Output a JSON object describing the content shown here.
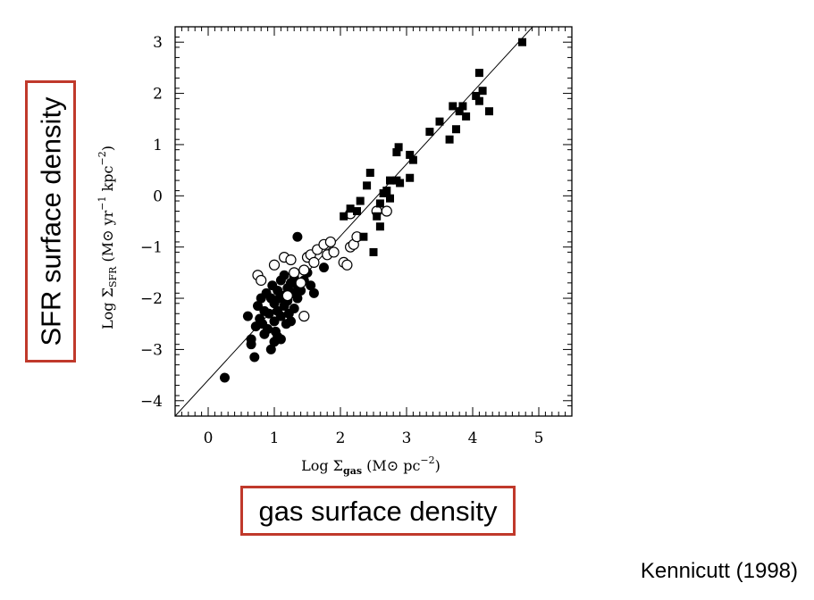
{
  "annotations": {
    "y_box_label": "SFR surface density",
    "x_box_label": "gas surface density",
    "citation": "Kennicutt (1998)"
  },
  "colors": {
    "box_border": "#c0392b",
    "points": "#000000",
    "axes": "#000000"
  },
  "chart_data": {
    "type": "scatter",
    "title": "",
    "xlabel": "Log Σgas  (M⊙ pc⁻²)",
    "ylabel": "Log ΣSFR  (M⊙ yr⁻¹ kpc⁻²)",
    "xlim": [
      -0.5,
      5.5
    ],
    "ylim": [
      -4.3,
      3.3
    ],
    "xticks": [
      0,
      1,
      2,
      3,
      4,
      5
    ],
    "yticks": [
      -4,
      -3,
      -2,
      -1,
      0,
      1,
      2,
      3
    ],
    "xtick_labels": [
      "0",
      "1",
      "2",
      "3",
      "4",
      "5"
    ],
    "ytick_labels": [
      "−4",
      "−3",
      "−2",
      "−1",
      "0",
      "1",
      "2",
      "3"
    ],
    "grid": false,
    "fit_line": {
      "points": [
        [
          -0.5,
          -4.3
        ],
        [
          5.05,
          3.5
        ]
      ]
    },
    "series": [
      {
        "marker": "filled-circle",
        "points": [
          [
            0.25,
            -3.55
          ],
          [
            0.6,
            -2.35
          ],
          [
            0.65,
            -2.8
          ],
          [
            0.65,
            -2.9
          ],
          [
            0.7,
            -3.15
          ],
          [
            0.72,
            -2.55
          ],
          [
            0.75,
            -2.15
          ],
          [
            0.78,
            -2.4
          ],
          [
            0.8,
            -2.0
          ],
          [
            0.82,
            -2.5
          ],
          [
            0.85,
            -2.25
          ],
          [
            0.88,
            -1.9
          ],
          [
            0.9,
            -2.6
          ],
          [
            0.92,
            -2.3
          ],
          [
            0.95,
            -2.0
          ],
          [
            0.97,
            -1.75
          ],
          [
            1.0,
            -2.45
          ],
          [
            1.0,
            -2.1
          ],
          [
            1.02,
            -2.65
          ],
          [
            1.05,
            -1.85
          ],
          [
            1.05,
            -2.25
          ],
          [
            1.08,
            -2.0
          ],
          [
            1.1,
            -1.65
          ],
          [
            1.1,
            -2.35
          ],
          [
            1.12,
            -1.95
          ],
          [
            1.15,
            -2.15
          ],
          [
            1.15,
            -1.55
          ],
          [
            1.18,
            -2.5
          ],
          [
            1.2,
            -1.8
          ],
          [
            1.2,
            -2.05
          ],
          [
            1.22,
            -2.3
          ],
          [
            1.25,
            -1.7
          ],
          [
            1.25,
            -2.45
          ],
          [
            1.28,
            -1.9
          ],
          [
            1.3,
            -2.2
          ],
          [
            1.3,
            -1.6
          ],
          [
            1.35,
            -2.0
          ],
          [
            1.35,
            -1.75
          ],
          [
            1.4,
            -1.85
          ],
          [
            1.45,
            -1.65
          ],
          [
            1.5,
            -1.5
          ],
          [
            1.55,
            -1.75
          ],
          [
            1.6,
            -1.9
          ],
          [
            1.75,
            -1.4
          ],
          [
            1.35,
            -0.8
          ],
          [
            1.0,
            -2.85
          ],
          [
            1.05,
            -2.75
          ],
          [
            0.95,
            -3.0
          ],
          [
            1.1,
            -2.8
          ],
          [
            0.85,
            -2.7
          ]
        ]
      },
      {
        "marker": "open-circle",
        "points": [
          [
            0.75,
            -1.55
          ],
          [
            0.8,
            -1.65
          ],
          [
            1.0,
            -1.35
          ],
          [
            1.15,
            -1.2
          ],
          [
            1.25,
            -1.25
          ],
          [
            1.3,
            -1.5
          ],
          [
            1.45,
            -1.45
          ],
          [
            1.5,
            -1.2
          ],
          [
            1.55,
            -1.15
          ],
          [
            1.6,
            -1.3
          ],
          [
            1.65,
            -1.05
          ],
          [
            1.75,
            -0.95
          ],
          [
            1.8,
            -1.15
          ],
          [
            1.85,
            -0.9
          ],
          [
            1.9,
            -1.1
          ],
          [
            2.05,
            -1.3
          ],
          [
            2.1,
            -1.35
          ],
          [
            2.15,
            -1.0
          ],
          [
            2.2,
            -0.95
          ],
          [
            2.25,
            -0.8
          ],
          [
            1.45,
            -2.35
          ],
          [
            2.15,
            -0.35
          ],
          [
            2.55,
            -0.3
          ],
          [
            2.7,
            -0.3
          ],
          [
            1.4,
            -1.7
          ],
          [
            1.2,
            -1.95
          ]
        ]
      },
      {
        "marker": "filled-square",
        "points": [
          [
            2.05,
            -0.4
          ],
          [
            2.15,
            -0.25
          ],
          [
            2.25,
            -0.3
          ],
          [
            2.3,
            -0.1
          ],
          [
            2.35,
            -0.8
          ],
          [
            2.4,
            0.2
          ],
          [
            2.45,
            0.45
          ],
          [
            2.5,
            -1.1
          ],
          [
            2.55,
            -0.4
          ],
          [
            2.6,
            -0.15
          ],
          [
            2.65,
            0.05
          ],
          [
            2.7,
            0.1
          ],
          [
            2.75,
            -0.05
          ],
          [
            2.6,
            -0.6
          ],
          [
            2.75,
            0.3
          ],
          [
            2.85,
            0.85
          ],
          [
            2.88,
            0.95
          ],
          [
            2.9,
            0.25
          ],
          [
            3.05,
            0.8
          ],
          [
            3.1,
            0.7
          ],
          [
            3.35,
            1.25
          ],
          [
            3.5,
            1.45
          ],
          [
            3.65,
            1.1
          ],
          [
            3.7,
            1.75
          ],
          [
            3.75,
            1.3
          ],
          [
            3.8,
            1.65
          ],
          [
            3.85,
            1.75
          ],
          [
            3.9,
            1.55
          ],
          [
            4.05,
            1.95
          ],
          [
            4.1,
            2.4
          ],
          [
            4.1,
            1.85
          ],
          [
            4.15,
            2.05
          ],
          [
            4.25,
            1.65
          ],
          [
            4.75,
            3.0
          ],
          [
            2.85,
            0.3
          ],
          [
            3.05,
            0.35
          ]
        ]
      }
    ]
  }
}
